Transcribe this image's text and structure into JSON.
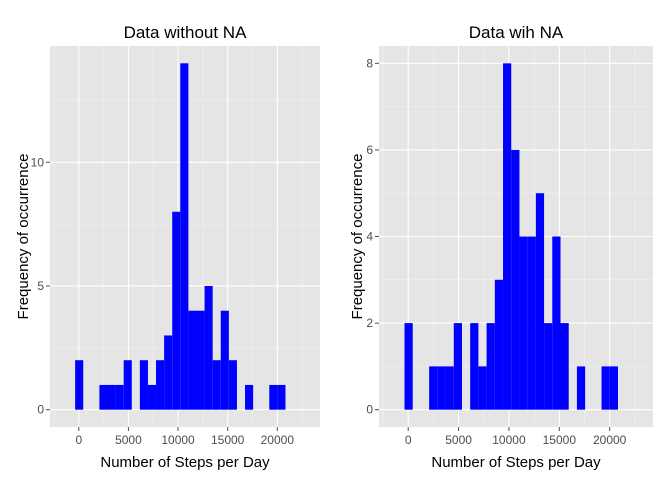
{
  "chart_data": [
    {
      "type": "bar",
      "title": "Data without NA",
      "xlabel": "Number of Steps per Day",
      "ylabel": "Frequency of occurrence",
      "bar_color": "#0000ff",
      "panel_background": "#e5e5e5",
      "grid": true,
      "bin_width": 815,
      "xlim": [
        -2900,
        24300
      ],
      "ylim": [
        -0.7,
        14.7
      ],
      "x_ticks": [
        0,
        5000,
        10000,
        15000,
        20000
      ],
      "x_tick_labels": [
        "0",
        "5000",
        "10000",
        "15000",
        "20000"
      ],
      "y_ticks": [
        0,
        5,
        10
      ],
      "y_tick_labels": [
        "0",
        "5",
        "10"
      ],
      "bins": [
        {
          "x": 40,
          "count": 2
        },
        {
          "x": 2485,
          "count": 1
        },
        {
          "x": 3300,
          "count": 1
        },
        {
          "x": 4115,
          "count": 1
        },
        {
          "x": 4930,
          "count": 2
        },
        {
          "x": 6560,
          "count": 2
        },
        {
          "x": 7375,
          "count": 1
        },
        {
          "x": 8190,
          "count": 2
        },
        {
          "x": 9005,
          "count": 3
        },
        {
          "x": 9820,
          "count": 8
        },
        {
          "x": 10635,
          "count": 14
        },
        {
          "x": 11450,
          "count": 4
        },
        {
          "x": 12265,
          "count": 4
        },
        {
          "x": 13080,
          "count": 5
        },
        {
          "x": 13895,
          "count": 2
        },
        {
          "x": 14710,
          "count": 4
        },
        {
          "x": 15525,
          "count": 2
        },
        {
          "x": 17155,
          "count": 1
        },
        {
          "x": 19600,
          "count": 1
        },
        {
          "x": 20415,
          "count": 1
        }
      ]
    },
    {
      "type": "bar",
      "title": "Data wih NA",
      "xlabel": "Number of Steps per Day",
      "ylabel": "Frequency of occurrence",
      "bar_color": "#0000ff",
      "panel_background": "#e5e5e5",
      "grid": true,
      "bin_width": 815,
      "xlim": [
        -2900,
        24300
      ],
      "ylim": [
        -0.4,
        8.4
      ],
      "x_ticks": [
        0,
        5000,
        10000,
        15000,
        20000
      ],
      "x_tick_labels": [
        "0",
        "5000",
        "10000",
        "15000",
        "20000"
      ],
      "y_ticks": [
        0,
        2,
        4,
        6,
        8
      ],
      "y_tick_labels": [
        "0",
        "2",
        "4",
        "6",
        "8"
      ],
      "bins": [
        {
          "x": 40,
          "count": 2
        },
        {
          "x": 2485,
          "count": 1
        },
        {
          "x": 3300,
          "count": 1
        },
        {
          "x": 4115,
          "count": 1
        },
        {
          "x": 4930,
          "count": 2
        },
        {
          "x": 6560,
          "count": 2
        },
        {
          "x": 7375,
          "count": 1
        },
        {
          "x": 8190,
          "count": 2
        },
        {
          "x": 9005,
          "count": 3
        },
        {
          "x": 9820,
          "count": 8
        },
        {
          "x": 10635,
          "count": 6
        },
        {
          "x": 11450,
          "count": 4
        },
        {
          "x": 12265,
          "count": 4
        },
        {
          "x": 13080,
          "count": 5
        },
        {
          "x": 13895,
          "count": 2
        },
        {
          "x": 14710,
          "count": 4
        },
        {
          "x": 15525,
          "count": 2
        },
        {
          "x": 17155,
          "count": 1
        },
        {
          "x": 19600,
          "count": 1
        },
        {
          "x": 20415,
          "count": 1
        }
      ]
    }
  ]
}
